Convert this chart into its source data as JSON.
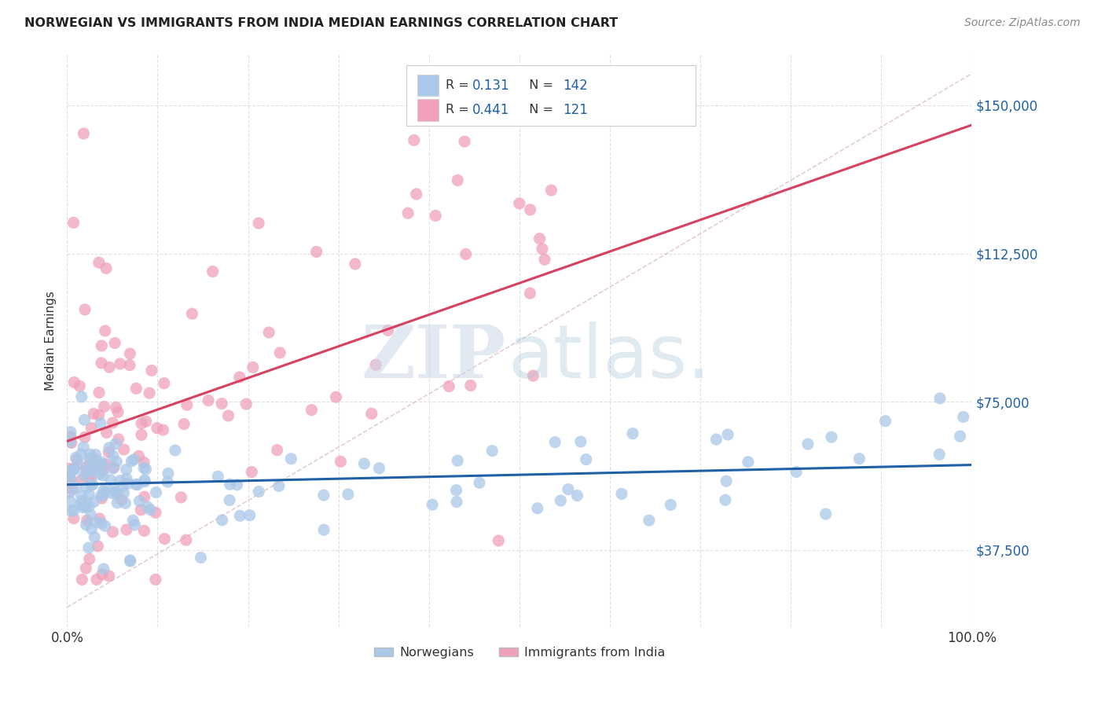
{
  "title": "NORWEGIAN VS IMMIGRANTS FROM INDIA MEDIAN EARNINGS CORRELATION CHART",
  "source": "Source: ZipAtlas.com",
  "ylabel": "Median Earnings",
  "yticks": [
    37500,
    75000,
    112500,
    150000
  ],
  "ytick_labels": [
    "$37,500",
    "$75,000",
    "$112,500",
    "$150,000"
  ],
  "xmin": 0.0,
  "xmax": 1.0,
  "ymin": 18000,
  "ymax": 163000,
  "norwegian_color": "#aac8e8",
  "india_color": "#f0a0b8",
  "norwegian_line_color": "#2060a8",
  "india_line_color": "#d84060",
  "diagonal_color": "#e0b8c8",
  "R_norwegian": 0.131,
  "N_norwegian": 142,
  "R_india": 0.441,
  "N_india": 121,
  "legend_norwegian": "Norwegians",
  "legend_india": "Immigrants from India",
  "background_color": "#ffffff",
  "grid_color": "#e0e0e0"
}
